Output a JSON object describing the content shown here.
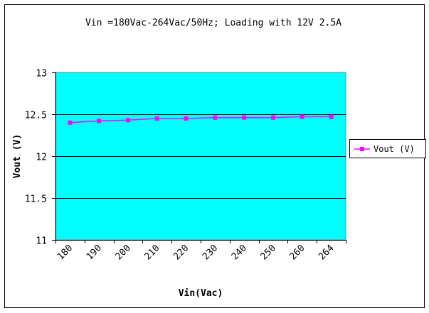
{
  "chart_data": {
    "type": "line",
    "title": "Vin =180Vac-264Vac/50Hz; Loading with 12V 2.5A",
    "xlabel": "Vin(Vac)",
    "ylabel": "Vout (V)",
    "categories": [
      "180",
      "190",
      "200",
      "210",
      "220",
      "230",
      "240",
      "250",
      "260",
      "264"
    ],
    "ylim": [
      11,
      13
    ],
    "yticks": [
      "11",
      "11.5",
      "12",
      "12.5",
      "13"
    ],
    "grid": true,
    "legend_position": "right",
    "series": [
      {
        "name": "Vout (V)",
        "values": [
          12.4,
          12.42,
          12.43,
          12.45,
          12.45,
          12.46,
          12.46,
          12.46,
          12.47,
          12.47
        ],
        "color": "#ff00ff",
        "marker": "square"
      }
    ],
    "colors": {
      "plot_background": "#00ffff",
      "line": "#ff00ff",
      "grid": "#000000"
    }
  }
}
